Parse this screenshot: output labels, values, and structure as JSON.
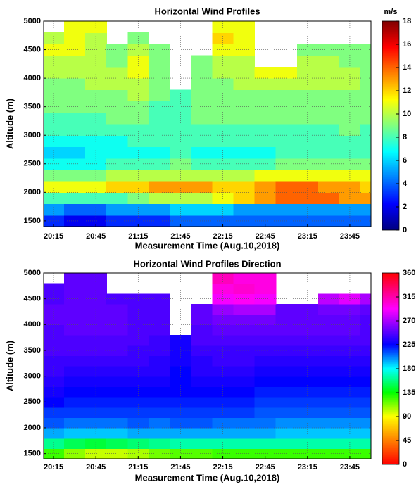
{
  "chart_data": [
    {
      "type": "heatmap",
      "title": "Horizontal Wind Profiles",
      "xlabel": "Measurement Time (Aug.10,2018)",
      "ylabel": "Altitude (m)",
      "colorbar_label": "m/s",
      "colormap": "jet",
      "grid": true,
      "xlim": [
        1208,
        1440
      ],
      "xticks": [
        {
          "value": 1215,
          "label": "20:15"
        },
        {
          "value": 1245,
          "label": "20:45"
        },
        {
          "value": 1275,
          "label": "21:15"
        },
        {
          "value": 1305,
          "label": "21:45"
        },
        {
          "value": 1335,
          "label": "22:15"
        },
        {
          "value": 1365,
          "label": "22:45"
        },
        {
          "value": 1395,
          "label": "23:15"
        },
        {
          "value": 1425,
          "label": "23:45"
        }
      ],
      "ylim": [
        1400,
        5000
      ],
      "yticks": [
        1500,
        2000,
        2500,
        3000,
        3500,
        4000,
        4500,
        5000
      ],
      "zlim": [
        0,
        18
      ],
      "zticks": [
        0,
        2,
        4,
        6,
        8,
        10,
        12,
        14,
        16,
        18
      ],
      "x": [
        1215,
        1230,
        1245,
        1260,
        1275,
        1290,
        1305,
        1320,
        1335,
        1350,
        1365,
        1380,
        1395,
        1410,
        1425,
        1440
      ],
      "y": [
        1500,
        1700,
        1900,
        2100,
        2300,
        2500,
        2700,
        2900,
        3100,
        3300,
        3500,
        3700,
        3900,
        4100,
        4300,
        4500,
        4700,
        4900
      ],
      "values": [
        [
          3,
          2,
          2,
          3,
          3,
          3,
          4,
          4,
          4,
          4,
          4,
          4,
          4,
          4,
          4,
          4
        ],
        [
          5,
          4,
          4,
          5,
          5,
          5,
          6,
          6,
          6,
          5,
          5,
          5,
          5,
          5,
          5,
          5
        ],
        [
          8,
          8,
          8,
          8,
          9,
          10,
          10,
          10,
          11,
          12,
          13,
          14,
          14,
          14,
          13,
          13
        ],
        [
          11,
          11,
          11,
          12,
          12,
          13,
          13,
          13,
          12,
          12,
          13,
          14,
          14,
          13,
          13,
          12
        ],
        [
          9,
          9,
          9,
          10,
          10,
          10,
          10,
          10,
          10,
          10,
          11,
          11,
          11,
          11,
          11,
          11
        ],
        [
          7,
          7,
          7,
          8,
          8,
          8,
          9,
          8,
          8,
          8,
          8,
          9,
          9,
          9,
          9,
          9
        ],
        [
          6,
          6,
          7,
          7,
          7,
          7,
          8,
          7,
          7,
          7,
          7,
          8,
          8,
          8,
          8,
          8
        ],
        [
          7,
          7,
          7,
          7,
          8,
          8,
          8,
          8,
          8,
          8,
          8,
          8,
          8,
          8,
          8,
          8
        ],
        [
          8,
          8,
          8,
          8,
          8,
          8,
          8,
          8,
          8,
          8,
          8,
          8,
          8,
          8,
          9,
          8
        ],
        [
          8,
          8,
          8,
          9,
          9,
          8,
          8,
          9,
          9,
          9,
          9,
          9,
          9,
          9,
          9,
          9
        ],
        [
          9,
          9,
          9,
          9,
          9,
          8,
          8,
          9,
          9,
          9,
          9,
          9,
          9,
          9,
          9,
          9
        ],
        [
          9,
          9,
          9,
          9,
          10,
          9,
          8,
          9,
          9,
          9,
          9,
          9,
          9,
          9,
          9,
          9
        ],
        [
          9,
          9,
          10,
          10,
          10,
          9,
          null,
          9,
          9,
          10,
          10,
          10,
          10,
          10,
          10,
          9
        ],
        [
          10,
          10,
          10,
          10,
          11,
          9,
          null,
          9,
          10,
          10,
          11,
          11,
          10,
          10,
          10,
          9
        ],
        [
          10,
          10,
          10,
          9,
          11,
          9,
          null,
          9,
          10,
          10,
          null,
          null,
          10,
          10,
          9,
          9
        ],
        [
          11,
          11,
          10,
          9,
          10,
          9,
          null,
          null,
          11,
          11,
          null,
          null,
          9,
          9,
          9,
          9
        ],
        [
          10,
          11,
          10,
          null,
          9,
          null,
          null,
          null,
          12,
          11,
          null,
          null,
          null,
          null,
          null,
          null
        ],
        [
          null,
          11,
          11,
          null,
          null,
          null,
          null,
          null,
          11,
          11,
          null,
          null,
          null,
          null,
          null,
          null
        ]
      ]
    },
    {
      "type": "heatmap",
      "title": "Horizontal Wind Profiles Direction",
      "xlabel": "Measurement Time (Aug.10,2018)",
      "ylabel": "Altitude (m)",
      "colormap": "hsv",
      "grid": true,
      "xlim": [
        1208,
        1440
      ],
      "xticks": [
        {
          "value": 1215,
          "label": "20:15"
        },
        {
          "value": 1245,
          "label": "20:45"
        },
        {
          "value": 1275,
          "label": "21:15"
        },
        {
          "value": 1305,
          "label": "21:45"
        },
        {
          "value": 1335,
          "label": "22:15"
        },
        {
          "value": 1365,
          "label": "22:45"
        },
        {
          "value": 1395,
          "label": "23:15"
        },
        {
          "value": 1425,
          "label": "23:45"
        }
      ],
      "ylim": [
        1400,
        5000
      ],
      "yticks": [
        1500,
        2000,
        2500,
        3000,
        3500,
        4000,
        4500,
        5000
      ],
      "zlim": [
        0,
        360
      ],
      "zticks": [
        0,
        45,
        90,
        135,
        180,
        225,
        270,
        315,
        360
      ],
      "x": [
        1215,
        1230,
        1245,
        1260,
        1275,
        1290,
        1305,
        1320,
        1335,
        1350,
        1365,
        1380,
        1395,
        1410,
        1425,
        1440
      ],
      "y": [
        1500,
        1700,
        1900,
        2100,
        2300,
        2500,
        2700,
        2900,
        3100,
        3300,
        3500,
        3700,
        3900,
        4100,
        4300,
        4500,
        4700,
        4900
      ],
      "values": [
        [
          125,
          110,
          100,
          100,
          105,
          115,
          120,
          120,
          125,
          125,
          125,
          125,
          125,
          125,
          125,
          125
        ],
        [
          160,
          150,
          145,
          150,
          155,
          160,
          165,
          165,
          165,
          165,
          165,
          165,
          165,
          165,
          165,
          165
        ],
        [
          195,
          190,
          190,
          190,
          195,
          195,
          195,
          195,
          195,
          195,
          195,
          190,
          190,
          190,
          190,
          190
        ],
        [
          210,
          205,
          205,
          205,
          210,
          205,
          210,
          210,
          205,
          205,
          205,
          200,
          200,
          200,
          200,
          200
        ],
        [
          215,
          215,
          215,
          215,
          215,
          215,
          215,
          215,
          215,
          215,
          210,
          210,
          210,
          210,
          210,
          210
        ],
        [
          225,
          220,
          220,
          220,
          220,
          220,
          220,
          220,
          220,
          220,
          215,
          215,
          215,
          215,
          215,
          215
        ],
        [
          230,
          225,
          225,
          225,
          225,
          225,
          225,
          225,
          225,
          225,
          220,
          220,
          220,
          220,
          220,
          220
        ],
        [
          235,
          230,
          230,
          230,
          230,
          230,
          225,
          230,
          230,
          230,
          225,
          225,
          225,
          225,
          225,
          225
        ],
        [
          240,
          235,
          235,
          235,
          235,
          235,
          225,
          235,
          235,
          235,
          230,
          230,
          230,
          230,
          230,
          230
        ],
        [
          240,
          240,
          240,
          240,
          240,
          235,
          230,
          235,
          240,
          240,
          235,
          235,
          235,
          235,
          235,
          235
        ],
        [
          245,
          245,
          245,
          245,
          240,
          240,
          230,
          240,
          240,
          240,
          240,
          240,
          240,
          240,
          240,
          240
        ],
        [
          245,
          245,
          245,
          245,
          245,
          240,
          230,
          245,
          245,
          245,
          245,
          245,
          245,
          245,
          245,
          245
        ],
        [
          245,
          250,
          250,
          250,
          245,
          245,
          null,
          245,
          250,
          250,
          250,
          250,
          250,
          250,
          250,
          245
        ],
        [
          250,
          250,
          250,
          250,
          245,
          245,
          null,
          250,
          255,
          255,
          255,
          250,
          250,
          250,
          250,
          245
        ],
        [
          250,
          250,
          250,
          250,
          245,
          245,
          null,
          250,
          265,
          270,
          270,
          250,
          250,
          255,
          255,
          250
        ],
        [
          245,
          250,
          250,
          245,
          245,
          245,
          null,
          null,
          290,
          295,
          290,
          null,
          null,
          275,
          285,
          270
        ],
        [
          245,
          250,
          250,
          null,
          null,
          null,
          null,
          null,
          300,
          305,
          300,
          null,
          null,
          null,
          null,
          null
        ],
        [
          null,
          250,
          250,
          null,
          null,
          null,
          null,
          null,
          310,
          300,
          300,
          null,
          null,
          null,
          null,
          null
        ]
      ]
    }
  ]
}
